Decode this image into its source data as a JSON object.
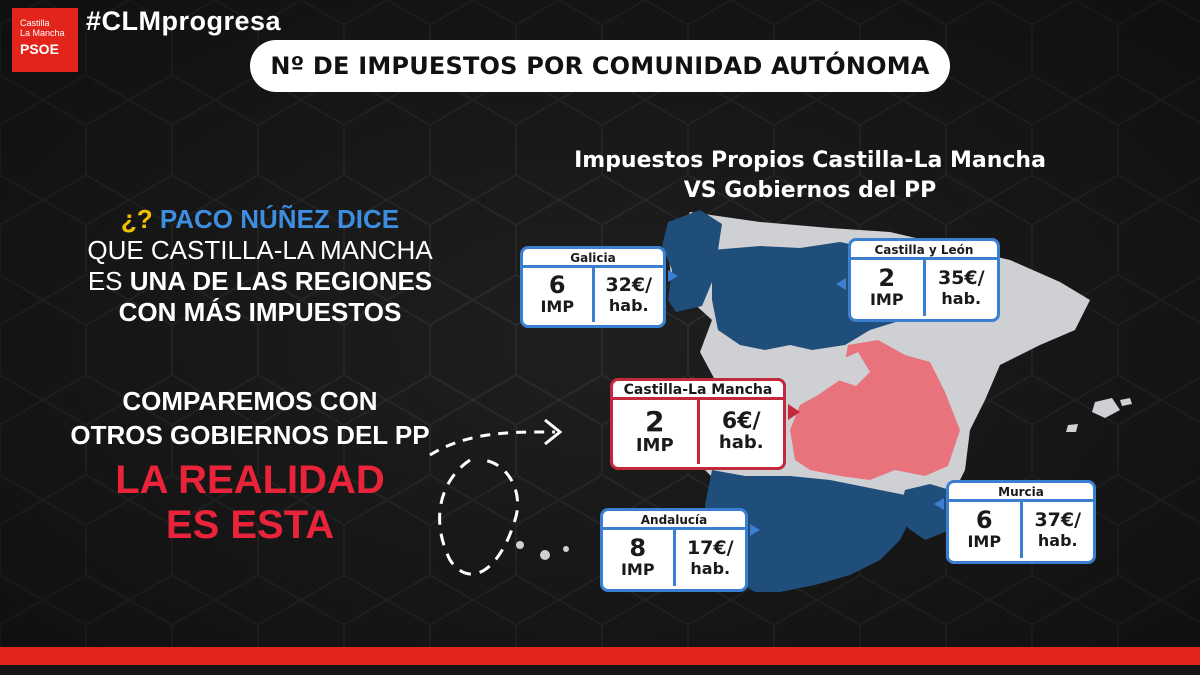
{
  "logo": {
    "line1": "Castilla",
    "line2": "La Mancha",
    "brand": "PSOE"
  },
  "hashtag": "#CLMprogresa",
  "title": "Nº DE IMPUESTOS POR COMUNIDAD AUTÓNOMA",
  "subtitle": {
    "line1": "Impuestos Propios Castilla-La Mancha",
    "line2": "VS Gobiernos del PP"
  },
  "claim": {
    "q": "¿?",
    "who": "PACO NÚÑEZ DICE",
    "line2": "QUE CASTILLA-LA MANCHA",
    "line3_a": "ES ",
    "line3_b": "UNA DE LAS REGIONES",
    "line4": "CON MÁS IMPUESTOS"
  },
  "compare": {
    "line1": "COMPAREMOS CON",
    "line2": "OTROS GOBIERNOS DEL PP"
  },
  "reality": {
    "line1": "LA REALIDAD",
    "line2": "ES ESTA"
  },
  "colors": {
    "pp_blue": "#1f4e7a",
    "clm_pink": "#e8737c",
    "other_grey": "#cfd0d4",
    "accent_red": "#e2241a",
    "card_blue": "#3b7fd0"
  },
  "regions": [
    {
      "name": "Galicia",
      "imp_num": "6",
      "imp_label": "IMP",
      "per_hab": "32€/",
      "hab_label": "hab."
    },
    {
      "name": "Castilla y León",
      "imp_num": "2",
      "imp_label": "IMP",
      "per_hab": "35€/",
      "hab_label": "hab."
    },
    {
      "name": "Castilla-La Mancha",
      "imp_num": "2",
      "imp_label": "IMP",
      "per_hab": "6€/",
      "hab_label": "hab."
    },
    {
      "name": "Andalucía",
      "imp_num": "8",
      "imp_label": "IMP",
      "per_hab": "17€/",
      "hab_label": "hab."
    },
    {
      "name": "Murcia",
      "imp_num": "6",
      "imp_label": "IMP",
      "per_hab": "37€/",
      "hab_label": "hab."
    }
  ]
}
